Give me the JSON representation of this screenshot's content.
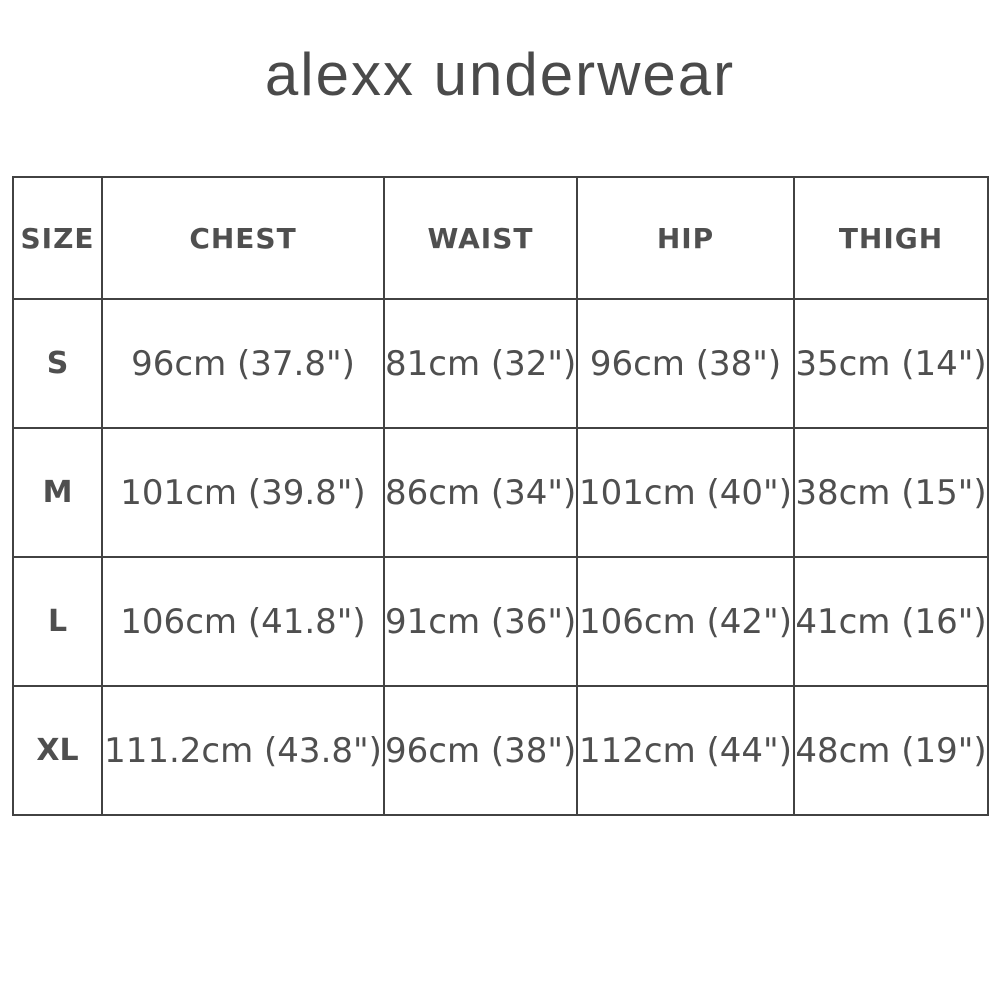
{
  "page": {
    "title": "alexx underwear"
  },
  "colors": {
    "background": "#ffffff",
    "text": "#4f4f4f",
    "title_text": "#4a4a4a",
    "border": "#424242"
  },
  "size_chart": {
    "columns": [
      "SIZE",
      "CHEST",
      "WAIST",
      "HIP",
      "THIGH"
    ],
    "rows": [
      [
        "S",
        "96cm (37.8\")",
        "81cm (32\")",
        "96cm (38\")",
        "35cm (14\")"
      ],
      [
        "M",
        "101cm (39.8\")",
        "86cm (34\")",
        "101cm (40\")",
        "38cm (15\")"
      ],
      [
        "L",
        "106cm (41.8\")",
        "91cm (36\")",
        "106cm (42\")",
        "41cm (16\")"
      ],
      [
        "XL",
        "111.2cm (43.8\")",
        "96cm (38\")",
        "112cm (44\")",
        "48cm (19\")"
      ]
    ]
  }
}
